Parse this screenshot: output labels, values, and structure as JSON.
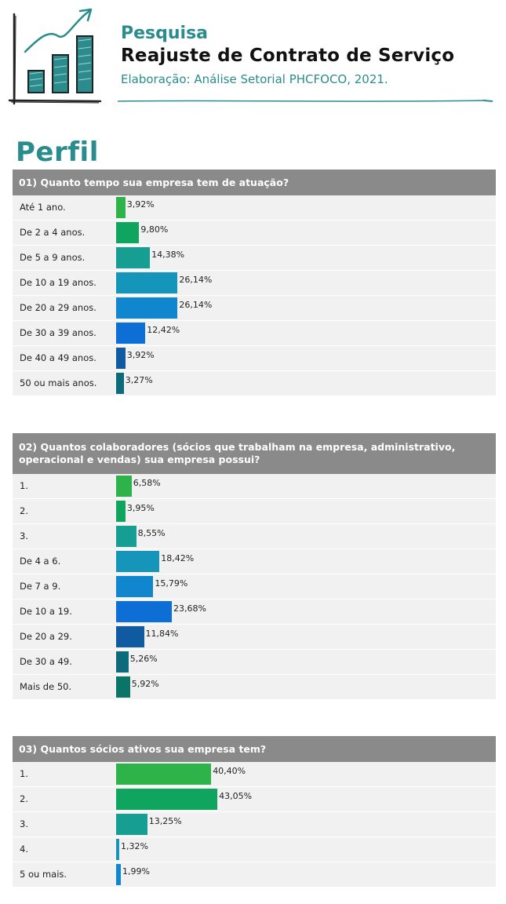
{
  "header": {
    "title": "Pesquisa",
    "subtitle": "Reajuste de Contrato de Serviço",
    "source": "Elaboração: Análise Setorial PHCFOCO, 2021."
  },
  "section_title": "Perfil",
  "colors": {
    "accent": "#2a8c8c",
    "question_header": "#8a8a8a",
    "row_background": "#f1f1f1"
  },
  "chart_data": [
    {
      "type": "bar",
      "orientation": "horizontal",
      "title": "01) Quanto tempo sua empresa tem de atuação?",
      "categories": [
        "Até 1 ano.",
        "De 2 a 4 anos.",
        "De 5 a 9 anos.",
        "De 10 a 19 anos.",
        "De 20 a 29 anos.",
        "De 30 a 39 anos.",
        "De 40 a 49 anos.",
        "50 ou mais anos."
      ],
      "values": [
        3.92,
        9.8,
        14.38,
        26.14,
        26.14,
        12.42,
        3.92,
        3.27
      ],
      "value_labels": [
        "3,92%",
        "9,80%",
        "14,38%",
        "26,14%",
        "26,14%",
        "12,42%",
        "3,92%",
        "3,27%"
      ],
      "colors": [
        "#2db34a",
        "#0fa55f",
        "#159e91",
        "#1595ba",
        "#1086cf",
        "#0d6fd6",
        "#0f5aa0",
        "#0d6a7a"
      ],
      "xlim": [
        0,
        100
      ]
    },
    {
      "type": "bar",
      "orientation": "horizontal",
      "title": "02) Quantos colaboradores (sócios que trabalham na empresa, administrativo, operacional e vendas) sua empresa possui?",
      "categories": [
        "1.",
        "2.",
        "3.",
        "De 4 a 6.",
        "De 7 a 9.",
        "De 10 a 19.",
        "De 20 a 29.",
        "De 30 a 49.",
        "Mais de 50."
      ],
      "values": [
        6.58,
        3.95,
        8.55,
        18.42,
        15.79,
        23.68,
        11.84,
        5.26,
        5.92
      ],
      "value_labels": [
        "6,58%",
        "3,95%",
        "8,55%",
        "18,42%",
        "15,79%",
        "23,68%",
        "11,84%",
        "5,26%",
        "5,92%"
      ],
      "colors": [
        "#2db34a",
        "#0fa55f",
        "#159e91",
        "#1595ba",
        "#1086cf",
        "#0d6fd6",
        "#0f5aa0",
        "#0d6a7a",
        "#0b7466"
      ],
      "xlim": [
        0,
        100
      ]
    },
    {
      "type": "bar",
      "orientation": "horizontal",
      "title": "03) Quantos sócios ativos sua empresa tem?",
      "categories": [
        "1.",
        "2.",
        "3.",
        "4.",
        "5 ou mais."
      ],
      "values": [
        40.4,
        43.05,
        13.25,
        1.32,
        1.99
      ],
      "value_labels": [
        "40,40%",
        "43,05%",
        "13,25%",
        "1,32%",
        "1,99%"
      ],
      "colors": [
        "#2db34a",
        "#0fa55f",
        "#159e91",
        "#1595ba",
        "#1086cf"
      ],
      "xlim": [
        0,
        100
      ]
    }
  ]
}
